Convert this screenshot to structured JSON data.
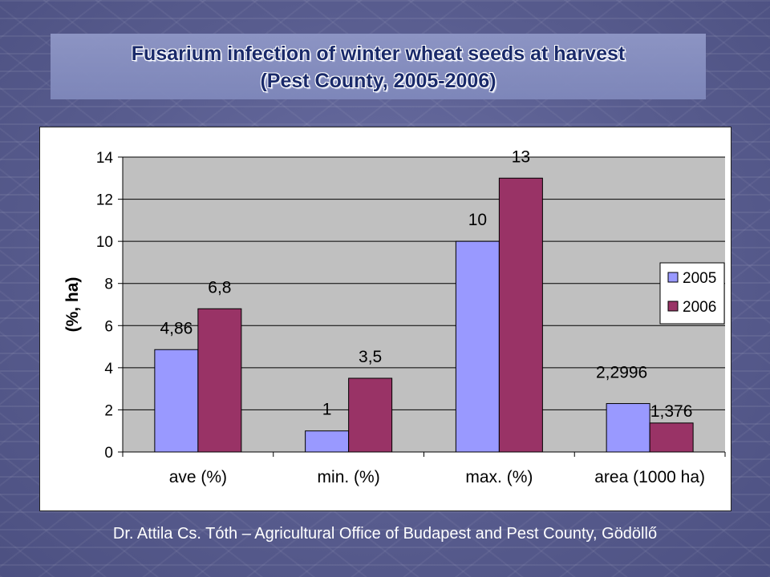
{
  "slide": {
    "title_line1": "Fusarium infection of winter wheat seeds at harvest",
    "title_line2": "(Pest County, 2005-2006)",
    "footer": "Dr. Attila Cs. Tóth – Agricultural Office of Budapest and Pest County, Gödöllő"
  },
  "chart_data": {
    "type": "bar",
    "categories": [
      "ave (%)",
      "min. (%)",
      "max. (%)",
      "area (1000 ha)"
    ],
    "series": [
      {
        "name": "2005",
        "values": [
          4.86,
          1,
          10,
          2.2996
        ],
        "labels": [
          "4,86",
          "1",
          "10",
          "2,2996"
        ],
        "color": "#9999ff"
      },
      {
        "name": "2006",
        "values": [
          6.8,
          3.5,
          13,
          1.376
        ],
        "labels": [
          "6,8",
          "3,5",
          "13",
          "1,376"
        ],
        "color": "#993366"
      }
    ],
    "ylabel": "(%, ha)",
    "xlabel": "",
    "ylim": [
      0,
      14
    ],
    "yticks": [
      0,
      2,
      4,
      6,
      8,
      10,
      12,
      14
    ],
    "grid": true,
    "plot_background": "#c0c0c0",
    "legend": "right"
  }
}
